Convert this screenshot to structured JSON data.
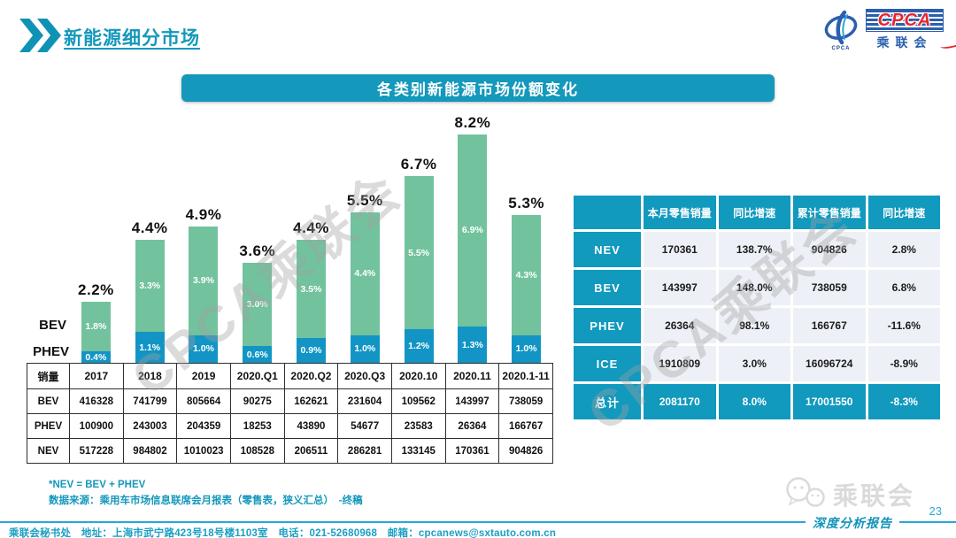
{
  "page": {
    "title": "新能源细分市场",
    "page_number": "23",
    "report_series_label": "深度分析报告",
    "footer_text": "乘联会秘书处　地址：上海市武宁路423号18号楼1103室　电话：021-52680968　邮箱：cpcanews@sxtauto.com.cn",
    "watermark_text": "CPCA乘联会",
    "corner_watermark_text": "乘联会"
  },
  "logo": {
    "acronym": "CPCA",
    "chinese_name": "乘联会",
    "emblem_caption": "CPCA"
  },
  "banner": {
    "title": "各类别新能源市场份额变化"
  },
  "colors": {
    "accent_teal": "#1199be",
    "bar_green": "#72c29e",
    "bar_blue": "#1295c4",
    "footer_line_blue": "#2aa7da",
    "summary_cell_bg": "#edf1f7",
    "logo_blue": "#2b5fae",
    "logo_red": "#e8262d",
    "watermark_gray": "#a0a0a0"
  },
  "chart_data": {
    "type": "bar",
    "stacked": true,
    "unit": "%",
    "title": "各类别新能源市场份额变化",
    "categories": [
      "2017",
      "2018",
      "2019",
      "2020.Q1",
      "2020.Q2",
      "2020.Q3",
      "2020.10",
      "2020.11",
      "2020.1-11"
    ],
    "series": [
      {
        "name": "BEV",
        "color": "#72c29e",
        "values": [
          1.8,
          3.3,
          3.9,
          3.0,
          3.5,
          4.4,
          5.5,
          6.9,
          4.3
        ]
      },
      {
        "name": "PHEV",
        "color": "#1295c4",
        "values": [
          0.4,
          1.1,
          1.0,
          0.6,
          0.9,
          1.0,
          1.2,
          1.3,
          1.0
        ]
      }
    ],
    "totals": [
      2.2,
      4.4,
      4.9,
      3.6,
      4.4,
      5.5,
      6.7,
      8.2,
      5.3
    ],
    "legend": [
      "BEV",
      "PHEV"
    ],
    "legend_position": "left",
    "ylim": [
      0,
      9
    ],
    "gridlines": false
  },
  "sales_table": {
    "header": [
      "销量",
      "2017",
      "2018",
      "2019",
      "2020.Q1",
      "2020.Q2",
      "2020.Q3",
      "2020.10",
      "2020.11",
      "2020.1-11"
    ],
    "rows": [
      [
        "BEV",
        "416328",
        "741799",
        "805664",
        "90275",
        "162621",
        "231604",
        "109562",
        "143997",
        "738059"
      ],
      [
        "PHEV",
        "100900",
        "243003",
        "204359",
        "18253",
        "43890",
        "54677",
        "23583",
        "26364",
        "166767"
      ],
      [
        "NEV",
        "517228",
        "984802",
        "1010023",
        "108528",
        "206511",
        "286281",
        "133145",
        "170361",
        "904826"
      ]
    ]
  },
  "summary_table": {
    "headers": [
      "",
      "本月零售销量",
      "同比增速",
      "累计零售销量",
      "同比增速"
    ],
    "rows": [
      {
        "label": "NEV",
        "cells": [
          "170361",
          "138.7%",
          "904826",
          "2.8%"
        ],
        "highlight": false
      },
      {
        "label": "BEV",
        "cells": [
          "143997",
          "148.0%",
          "738059",
          "6.8%"
        ],
        "highlight": false
      },
      {
        "label": "PHEV",
        "cells": [
          "26364",
          "98.1%",
          "166767",
          "-11.6%"
        ],
        "highlight": false
      },
      {
        "label": "ICE",
        "cells": [
          "1910809",
          "3.0%",
          "16096724",
          "-8.9%"
        ],
        "highlight": false
      },
      {
        "label": "总计",
        "cells": [
          "2081170",
          "8.0%",
          "17001550",
          "-8.3%"
        ],
        "highlight": true
      }
    ]
  },
  "notes": [
    "*NEV = BEV + PHEV",
    "数据来源：乘用车市场信息联席会月报表（零售表，狭义汇总）　-终稿"
  ]
}
